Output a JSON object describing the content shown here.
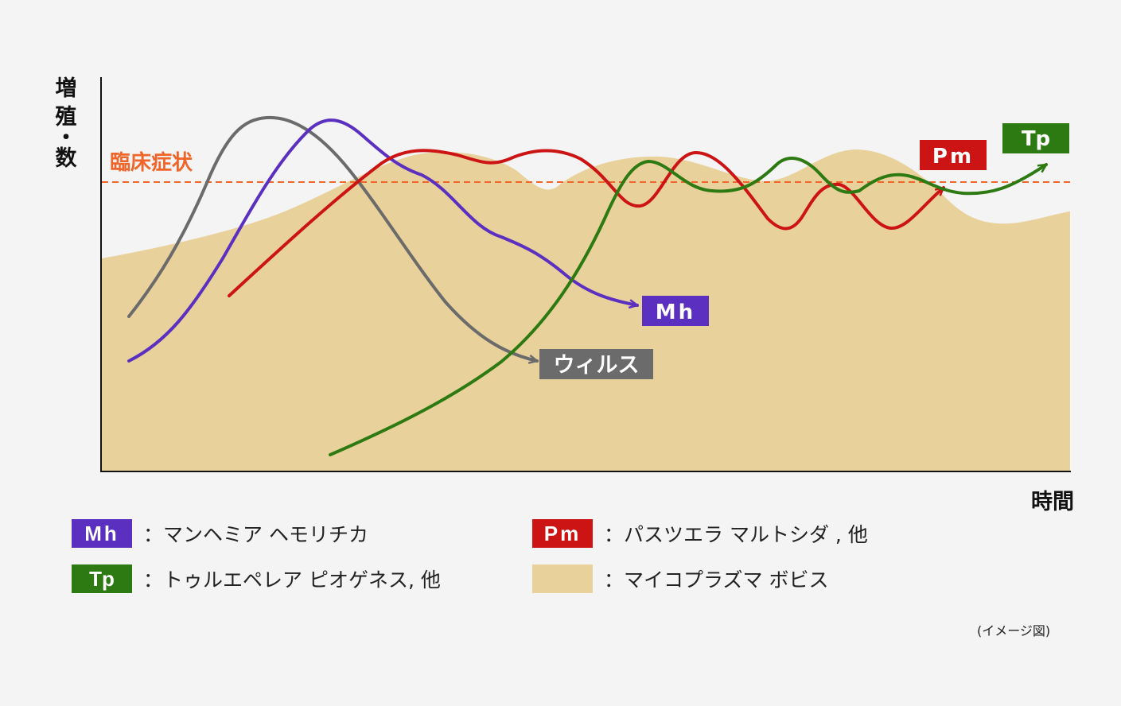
{
  "axes": {
    "y_label": "増殖・数",
    "x_label": "時間"
  },
  "threshold": {
    "label": "臨床症状",
    "color": "#f0652a"
  },
  "series": [
    {
      "key": "virus",
      "tag": "ウィルス",
      "color": "#6b6b6b"
    },
    {
      "key": "mh",
      "tag": "Mh",
      "color": "#5b2fc0"
    },
    {
      "key": "pm",
      "tag": "Pm",
      "color": "#cc1414"
    },
    {
      "key": "tp",
      "tag": "Tp",
      "color": "#2e7a12"
    }
  ],
  "area": {
    "key": "mycoplasma",
    "color": "#e9d19c"
  },
  "legend": [
    {
      "chip": "Mh",
      "color": "#5b2fc0",
      "text": "：マンヘミア ヘモリチカ"
    },
    {
      "chip": "Tp",
      "color": "#2e7a12",
      "text": "：トゥルエペレア ピオゲネス, 他"
    },
    {
      "chip": "Pm",
      "color": "#cc1414",
      "text": "：パスツエラ マルトシダ , 他"
    },
    {
      "chip": "",
      "color": "#e9d19c",
      "text": "：マイコプラズマ ボビス"
    }
  ],
  "note": "(イメージ図)"
}
